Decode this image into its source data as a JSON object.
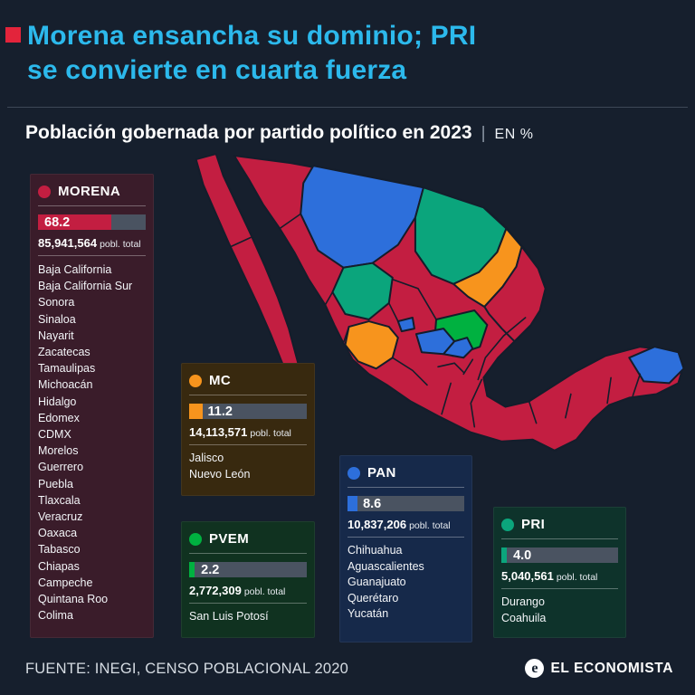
{
  "colors": {
    "background": "#161f2d",
    "title_accent": "#2cb9ec",
    "accent_red": "#e3243b",
    "bar_track": "#4a5361",
    "map_stroke": "#141d2b",
    "morena": "#c31e41",
    "mc": "#f7941d",
    "pan": "#2d6fdb",
    "pvem": "#00b140",
    "pri": "#0ba57c",
    "morena_panel_bg": "#3a1c2a",
    "mc_panel_bg": "#38290f",
    "pan_panel_bg": "#16294a",
    "pvem_panel_bg": "#103220",
    "pri_panel_bg": "#0e332b"
  },
  "header": {
    "title_line1": "Morena ensancha su dominio; PRI",
    "title_line2": "se convierte en cuarta fuerza",
    "subtitle": "Población gobernada por partido político en 2023",
    "separator": "|",
    "unit": "EN %"
  },
  "panels": {
    "morena": {
      "name": "MORENA",
      "percent": 68.2,
      "percent_label": "68.2",
      "population": "85,941,564",
      "population_suffix": "pobl. total",
      "states": [
        "Baja California",
        "Baja California Sur",
        "Sonora",
        "Sinaloa",
        "Nayarit",
        "Zacatecas",
        "Tamaulipas",
        "Michoacán",
        "Hidalgo",
        "Edomex",
        "CDMX",
        "Morelos",
        "Guerrero",
        "Puebla",
        "Tlaxcala",
        "Veracruz",
        "Oaxaca",
        "Tabasco",
        "Chiapas",
        "Campeche",
        "Quintana Roo",
        "Colima"
      ]
    },
    "mc": {
      "name": "MC",
      "percent": 11.2,
      "percent_label": "11.2",
      "population": "14,113,571",
      "population_suffix": "pobl. total",
      "states": [
        "Jalisco",
        "Nuevo León"
      ]
    },
    "pan": {
      "name": "PAN",
      "percent": 8.6,
      "percent_label": "8.6",
      "population": "10,837,206",
      "population_suffix": "pobl. total",
      "states": [
        "Chihuahua",
        "Aguascalientes",
        "Guanajuato",
        "Querétaro",
        "Yucatán"
      ]
    },
    "pvem": {
      "name": "PVEM",
      "percent": 2.2,
      "percent_label": "2.2",
      "population": "2,772,309",
      "population_suffix": "pobl. total",
      "states": [
        "San Luis Potosí"
      ]
    },
    "pri": {
      "name": "PRI",
      "percent": 4.0,
      "percent_label": "4.0",
      "population": "5,040,561",
      "population_suffix": "pobl. total",
      "states": [
        "Durango",
        "Coahuila"
      ]
    }
  },
  "footer": {
    "source": "FUENTE: INEGI, CENSO POBLACIONAL 2020",
    "brand": "EL ECONOMISTA"
  },
  "chart_data": {
    "type": "bar",
    "title": "Población gobernada por partido político en 2023",
    "unit": "EN %",
    "categories": [
      "MORENA",
      "MC",
      "PAN",
      "PRI",
      "PVEM"
    ],
    "values": [
      68.2,
      11.2,
      8.6,
      4.0,
      2.2
    ],
    "series": [
      {
        "name": "MORENA",
        "percent": 68.2,
        "population_total": "85,941,564",
        "states": [
          "Baja California",
          "Baja California Sur",
          "Sonora",
          "Sinaloa",
          "Nayarit",
          "Zacatecas",
          "Tamaulipas",
          "Michoacán",
          "Hidalgo",
          "Edomex",
          "CDMX",
          "Morelos",
          "Guerrero",
          "Puebla",
          "Tlaxcala",
          "Veracruz",
          "Oaxaca",
          "Tabasco",
          "Chiapas",
          "Campeche",
          "Quintana Roo",
          "Colima"
        ]
      },
      {
        "name": "MC",
        "percent": 11.2,
        "population_total": "14,113,571",
        "states": [
          "Jalisco",
          "Nuevo León"
        ]
      },
      {
        "name": "PAN",
        "percent": 8.6,
        "population_total": "10,837,206",
        "states": [
          "Chihuahua",
          "Aguascalientes",
          "Guanajuato",
          "Querétaro",
          "Yucatán"
        ]
      },
      {
        "name": "PRI",
        "percent": 4.0,
        "population_total": "5,040,561",
        "states": [
          "Durango",
          "Coahuila"
        ]
      },
      {
        "name": "PVEM",
        "percent": 2.2,
        "population_total": "2,772,309",
        "states": [
          "San Luis Potosí"
        ]
      }
    ],
    "source": "FUENTE: INEGI, CENSO POBLACIONAL 2020"
  }
}
